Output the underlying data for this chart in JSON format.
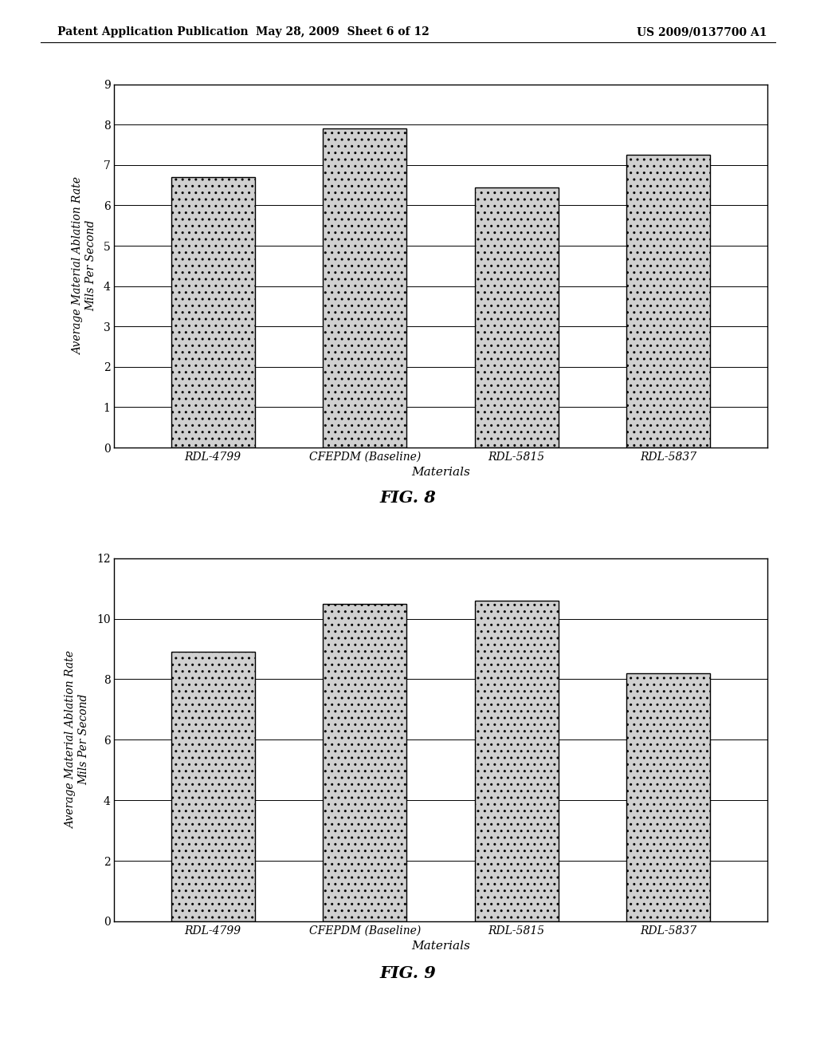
{
  "header_left": "Patent Application Publication",
  "header_mid": "May 28, 2009  Sheet 6 of 12",
  "header_right": "US 2009/0137700 A1",
  "fig8": {
    "categories": [
      "RDL-4799",
      "CFEPDM (Baseline)",
      "RDL-5815",
      "RDL-5837"
    ],
    "values": [
      6.7,
      7.9,
      6.45,
      7.25
    ],
    "ylabel_line1": "Average Material Ablation Rate",
    "ylabel_line2": "Mils Per Second",
    "xlabel": "Materials",
    "caption": "FIG. 8",
    "ylim": [
      0,
      9
    ],
    "yticks": [
      0,
      1,
      2,
      3,
      4,
      5,
      6,
      7,
      8,
      9
    ]
  },
  "fig9": {
    "categories": [
      "RDL-4799",
      "CFEPDM (Baseline)",
      "RDL-5815",
      "RDL-5837"
    ],
    "values": [
      8.9,
      10.5,
      10.6,
      8.2
    ],
    "ylabel_line1": "Average Material Ablation Rate",
    "ylabel_line2": "Mils Per Second",
    "xlabel": "Materials",
    "caption": "FIG. 9",
    "ylim": [
      0,
      12
    ],
    "yticks": [
      0,
      2,
      4,
      6,
      8,
      10,
      12
    ]
  },
  "bar_color": "#d0d0d0",
  "bar_hatch": "..",
  "background_color": "#ffffff",
  "bar_edge_color": "#000000"
}
